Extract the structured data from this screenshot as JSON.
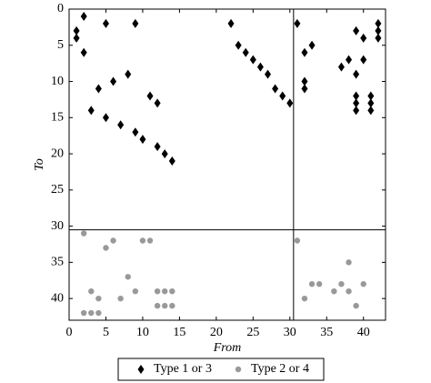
{
  "chart_data": {
    "type": "scatter",
    "xlabel": "From",
    "ylabel": "To",
    "xlim": [
      0,
      43
    ],
    "ylim": [
      0,
      43
    ],
    "yinverted": true,
    "xticks": [
      0,
      5,
      10,
      15,
      20,
      25,
      30,
      35,
      40
    ],
    "yticks": [
      0,
      5,
      10,
      15,
      20,
      25,
      30,
      35,
      40
    ],
    "reference_lines": {
      "x": 30.5,
      "y": 30.5
    },
    "legend": "bottom",
    "series": [
      {
        "name": "Type 1 or 3",
        "color": "#000000",
        "marker": "diamond",
        "x": [
          1,
          1,
          2,
          2,
          5,
          9,
          4,
          3,
          5,
          6,
          8,
          7,
          9,
          10,
          11,
          12,
          12,
          13,
          14,
          22,
          23,
          24,
          25,
          26,
          27,
          28,
          29,
          30,
          31,
          32,
          33,
          32,
          32,
          37,
          38,
          39,
          39,
          39,
          39,
          39,
          40,
          40,
          41,
          41,
          41,
          42,
          42,
          42
        ],
        "values": [
          3,
          4,
          1,
          6,
          2,
          2,
          11,
          14,
          15,
          10,
          9,
          16,
          17,
          18,
          12,
          13,
          19,
          20,
          21,
          2,
          5,
          6,
          7,
          8,
          9,
          11,
          12,
          13,
          2,
          6,
          5,
          10,
          11,
          8,
          7,
          3,
          9,
          12,
          13,
          14,
          4,
          7,
          12,
          13,
          14,
          2,
          3,
          4
        ]
      },
      {
        "name": "Type 2 or 4",
        "color": "#999999",
        "marker": "circle",
        "x": [
          2,
          5,
          6,
          3,
          4,
          8,
          9,
          10,
          11,
          2,
          3,
          4,
          7,
          12,
          13,
          14,
          12,
          13,
          14,
          31,
          32,
          33,
          34,
          36,
          37,
          38,
          38,
          39,
          40
        ],
        "values": [
          31,
          33,
          32,
          39,
          40,
          37,
          39,
          32,
          32,
          42,
          42,
          42,
          40,
          39,
          39,
          39,
          41,
          41,
          41,
          32,
          40,
          38,
          38,
          39,
          38,
          35,
          39,
          41,
          38
        ]
      }
    ]
  }
}
